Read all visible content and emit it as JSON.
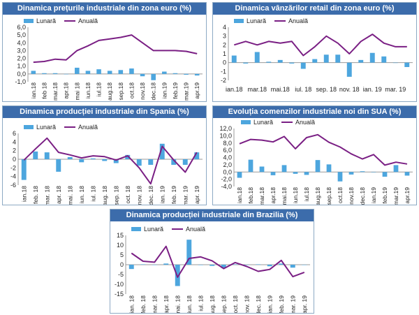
{
  "colors": {
    "title_bg": "#3c6cab",
    "title_text": "#ffffff",
    "bar": "#4da6de",
    "line": "#7a1f84",
    "axis": "#444444"
  },
  "chart_data": [
    {
      "type": "bar+line",
      "title": "Dinamica prețurile industriale din zona euro (%)",
      "legend": [
        "Lunară",
        "Anuală"
      ],
      "x": [
        "ian.18",
        "feb.18",
        "mar.18",
        "apr.18",
        "mai.18",
        "iun.18",
        "iul.18",
        "aug.18",
        "sep.18",
        "oct.18",
        "nov.18",
        "dec.18",
        "ian.19",
        "feb.19",
        "mar.19",
        "apr.19"
      ],
      "xlabels": [
        "ian.18",
        "feb 18",
        "mar.18",
        "apr.18",
        "mai 18",
        "iun.18",
        "iul.18",
        "aug.18",
        "sep.18",
        "oct.18",
        "nov.18",
        "dec.18",
        "ian.19",
        "feb.19",
        "mar.19",
        "apr.19"
      ],
      "yticks": [
        "6,0",
        "5,0",
        "4,0",
        "3,0",
        "2,0",
        "1,0",
        "0,0",
        "-1,0"
      ],
      "ylim": [
        -1,
        6
      ],
      "series": [
        {
          "name": "Lunară",
          "kind": "bar",
          "values": [
            0.4,
            0.1,
            0.1,
            0.0,
            0.8,
            0.4,
            0.6,
            0.4,
            0.5,
            0.7,
            -0.3,
            -0.8,
            0.3,
            0.1,
            -0.1,
            -0.2
          ]
        },
        {
          "name": "Anuală",
          "kind": "line",
          "values": [
            1.5,
            1.6,
            1.9,
            1.8,
            3.0,
            3.6,
            4.3,
            4.5,
            4.7,
            5.0,
            4.0,
            3.0,
            3.0,
            3.0,
            2.9,
            2.6
          ]
        }
      ]
    },
    {
      "type": "bar+line",
      "title": "Dinamica vânzărilor retail din zona euro (%)",
      "legend": [
        "Lunară",
        "Anuală"
      ],
      "x": [
        "ian.18",
        "feb.18",
        "mar.18",
        "apr.18",
        "mai.18",
        "iun.18",
        "iul.18",
        "aug.18",
        "sep.18",
        "oct.18",
        "nov.18",
        "dec.18",
        "ian.19",
        "feb.19",
        "mar.19",
        "apr.19"
      ],
      "xlabels": [
        "ian.18",
        "mar.18",
        "mai.18",
        "iul. 18",
        "sep. 18",
        "nov. 18",
        "ian. 19",
        "mar. 19"
      ],
      "xlabel_every": 2,
      "yticks": [
        "4",
        "3",
        "2",
        "1",
        "0",
        "-1",
        "-2"
      ],
      "ylim": [
        -2,
        4
      ],
      "series": [
        {
          "name": "Lunară",
          "kind": "bar",
          "values": [
            0.8,
            -0.1,
            1.2,
            0.1,
            0.3,
            -0.1,
            -0.7,
            0.4,
            0.9,
            0.9,
            -1.6,
            0.3,
            1.1,
            0.7,
            0.0,
            -0.5
          ]
        },
        {
          "name": "Anuală",
          "kind": "line",
          "values": [
            2.0,
            2.4,
            2.0,
            2.4,
            2.2,
            2.4,
            0.8,
            1.8,
            3.0,
            2.2,
            1.0,
            2.4,
            3.2,
            2.2,
            1.8,
            1.8
          ]
        }
      ]
    },
    {
      "type": "bar+line",
      "title": "Dinamica producției industriale din Spania (%)",
      "legend": [
        "Lunară",
        "Anuală"
      ],
      "x": [
        "ian.18",
        "feb.18",
        "mar.18",
        "apr.18",
        "mai.18",
        "iun.18",
        "iul.18",
        "aug.18",
        "sep.18",
        "oct.18",
        "nov.18",
        "dec.18",
        "ian.19",
        "feb.19",
        "mar.19",
        "apr.19"
      ],
      "xlabels": [
        "ian.18",
        "feb. 18",
        "mar. 18",
        "apr. 18",
        "mai. 18",
        "iun. 18",
        "iul. 18",
        "aug. 18",
        "sep. 18",
        "oct. 18",
        "nov. 18",
        "dec. 18",
        "ian. 19",
        "feb. 19",
        "mar. 19",
        "apr. 19"
      ],
      "yticks": [
        "6",
        "4",
        "2",
        "0",
        "-2",
        "-4",
        "-6"
      ],
      "ylim": [
        -6,
        6
      ],
      "series": [
        {
          "name": "Lunară",
          "kind": "bar",
          "values": [
            -4.8,
            1.8,
            1.6,
            -2.9,
            0.5,
            -0.7,
            0.2,
            -0.4,
            -0.9,
            1.0,
            -1.5,
            -1.3,
            3.6,
            -1.3,
            -1.3,
            1.6
          ]
        },
        {
          "name": "Anuală",
          "kind": "line",
          "values": [
            -0.2,
            2.4,
            4.9,
            1.6,
            1.0,
            0.3,
            0.8,
            0.6,
            -0.2,
            0.8,
            -2.0,
            -5.7,
            3.0,
            -0.2,
            -3.0,
            1.6
          ]
        }
      ]
    },
    {
      "type": "bar+line",
      "title": "Evoluția comenzilor industriale noi din SUA (%)",
      "legend": [
        "Lunară",
        "Anuală"
      ],
      "x": [
        "ian.18",
        "feb.18",
        "mar.18",
        "apr.18",
        "mai.18",
        "iun.18",
        "iul.18",
        "aug.18",
        "sep.18",
        "oct.18",
        "nov.18",
        "dec.18",
        "ian.19",
        "feb.19",
        "mar.19",
        "apr.19"
      ],
      "xlabels": [
        "ian.18",
        "feb.18",
        "mar.18",
        "apr.18",
        "mai.18",
        "iun.18",
        "iul.18",
        "aug.18",
        "sep.18",
        "oct.18",
        "nov.18",
        "dec.18",
        "ian.19",
        "feb.19",
        "mar.19",
        "apr.19"
      ],
      "yticks": [
        "12,0",
        "10,0",
        "8,0",
        "6,0",
        "4,0",
        "2,0",
        "0,0",
        "-2,0",
        "-4,0"
      ],
      "ylim": [
        -4,
        12
      ],
      "series": [
        {
          "name": "Lunară",
          "kind": "bar",
          "values": [
            -1.6,
            3.4,
            1.5,
            -0.9,
            1.9,
            -0.5,
            -0.8,
            3.3,
            2.1,
            -2.6,
            -0.7,
            0.2,
            0.0,
            -1.3,
            1.9,
            -1.0
          ]
        },
        {
          "name": "Anuală",
          "kind": "line",
          "values": [
            7.8,
            9.0,
            8.8,
            8.3,
            9.8,
            6.4,
            9.5,
            10.3,
            8.2,
            6.9,
            5.0,
            3.6,
            4.8,
            1.9,
            2.7,
            2.2
          ]
        }
      ]
    },
    {
      "type": "bar+line",
      "title": "Dinamica producției industriale din Brazilia (%)",
      "legend": [
        "Lunară",
        "Anuală"
      ],
      "x": [
        "ian.18",
        "feb.18",
        "mar.18",
        "apr.18",
        "mai.18",
        "iun.18",
        "iul.18",
        "aug.18",
        "sep.18",
        "oct.18",
        "nov.18",
        "dec.18",
        "ian.19",
        "feb.19",
        "mar.19",
        "apr.19"
      ],
      "xlabels": [
        "ian. 18",
        "feb. 18",
        "mar. 18",
        "apr. 18",
        "mai. 18",
        "iun. 18",
        "iul. 18",
        "aug. 18",
        "sep. 18",
        "oct. 18",
        "nov. 18",
        "dec. 18",
        "ian. 19",
        "feb. 19",
        "mar. 19",
        "apr. 19"
      ],
      "yticks": [
        "15",
        "10",
        "5",
        "0",
        "-5",
        "-10",
        "-15"
      ],
      "ylim": [
        -15,
        15
      ],
      "series": [
        {
          "name": "Lunară",
          "kind": "bar",
          "values": [
            -2.2,
            0.2,
            0.0,
            0.6,
            -10.9,
            12.8,
            -0.2,
            -0.6,
            -1.8,
            0.2,
            -0.1,
            0.2,
            -0.8,
            0.6,
            -1.5,
            -0.1
          ]
        },
        {
          "name": "Anuală",
          "kind": "line",
          "values": [
            5.9,
            1.8,
            1.3,
            9.4,
            -6.4,
            3.2,
            4.0,
            2.0,
            -2.0,
            1.1,
            -0.9,
            -3.4,
            -2.4,
            2.2,
            -6.1,
            -3.9
          ]
        }
      ]
    }
  ]
}
